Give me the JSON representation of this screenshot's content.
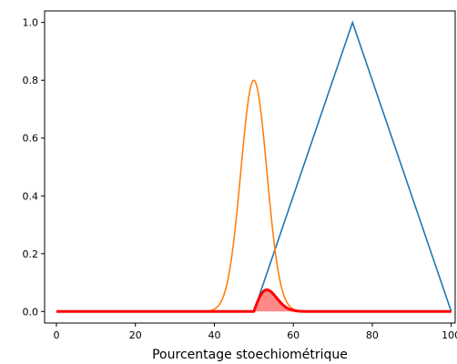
{
  "chart_data": {
    "type": "line",
    "title": "",
    "xlabel": "Pourcentage stoechiométrique",
    "ylabel": "",
    "xlim": [
      -3,
      101
    ],
    "ylim": [
      -0.04,
      1.04
    ],
    "grid": false,
    "legend": "none",
    "x_ticks": [
      0,
      20,
      40,
      60,
      80,
      100
    ],
    "x_tick_labels": [
      "0",
      "20",
      "40",
      "60",
      "80",
      "100"
    ],
    "y_ticks": [
      0.0,
      0.2,
      0.4,
      0.6,
      0.8,
      1.0
    ],
    "y_tick_labels": [
      "0.0",
      "0.2",
      "0.4",
      "0.6",
      "0.8",
      "1.0"
    ],
    "series": [
      {
        "kind": "triangle",
        "color": "#1f77b4",
        "x": [
          0,
          50,
          75,
          100
        ],
        "y": [
          0,
          0,
          1.0,
          0
        ]
      },
      {
        "kind": "gaussian",
        "color": "#ff7f0e",
        "center": 50,
        "sigma": 3.3,
        "peak": 0.8,
        "x_range": [
          0,
          100
        ]
      },
      {
        "kind": "product",
        "color": "#ff0000",
        "fill": "#ff6b6b",
        "x_range": [
          0,
          100
        ],
        "peak_x": 54,
        "peak_y": 0.075
      }
    ]
  }
}
